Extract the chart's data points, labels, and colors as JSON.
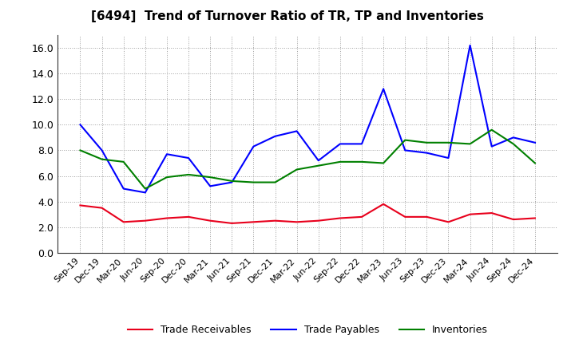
{
  "title": "[6494]  Trend of Turnover Ratio of TR, TP and Inventories",
  "x_labels": [
    "Sep-19",
    "Dec-19",
    "Mar-20",
    "Jun-20",
    "Sep-20",
    "Dec-20",
    "Mar-21",
    "Jun-21",
    "Sep-21",
    "Dec-21",
    "Mar-22",
    "Jun-22",
    "Sep-22",
    "Dec-22",
    "Mar-23",
    "Jun-23",
    "Sep-23",
    "Dec-23",
    "Mar-24",
    "Jun-24",
    "Sep-24",
    "Dec-24"
  ],
  "trade_receivables": [
    3.7,
    3.5,
    2.4,
    2.5,
    2.7,
    2.8,
    2.5,
    2.3,
    2.4,
    2.5,
    2.4,
    2.5,
    2.7,
    2.8,
    3.8,
    2.8,
    2.8,
    2.4,
    3.0,
    3.1,
    2.6,
    2.7
  ],
  "trade_payables": [
    10.0,
    8.0,
    5.0,
    4.7,
    7.7,
    7.4,
    5.2,
    5.5,
    8.3,
    9.1,
    9.5,
    7.2,
    8.5,
    8.5,
    12.8,
    8.0,
    7.8,
    7.4,
    16.2,
    8.3,
    9.0,
    8.6
  ],
  "inventories": [
    8.0,
    7.3,
    7.1,
    5.0,
    5.9,
    6.1,
    5.9,
    5.6,
    5.5,
    5.5,
    6.5,
    6.8,
    7.1,
    7.1,
    7.0,
    8.8,
    8.6,
    8.6,
    8.5,
    9.6,
    8.5,
    7.0
  ],
  "ylim": [
    0,
    17.0
  ],
  "yticks": [
    0.0,
    2.0,
    4.0,
    6.0,
    8.0,
    10.0,
    12.0,
    14.0,
    16.0
  ],
  "color_tr": "#e8001c",
  "color_tp": "#0000ff",
  "color_inv": "#008000",
  "legend_tr": "Trade Receivables",
  "legend_tp": "Trade Payables",
  "legend_inv": "Inventories",
  "bg_color": "#ffffff",
  "grid_color": "#a0a0a0"
}
